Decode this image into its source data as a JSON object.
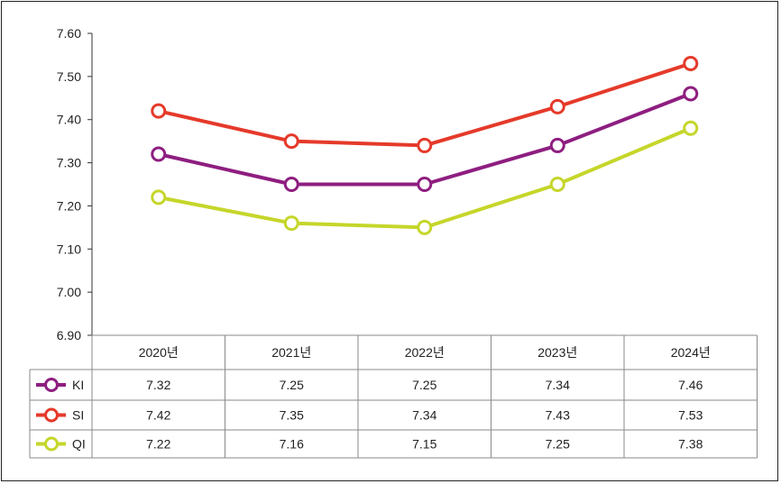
{
  "chart_data": {
    "type": "line",
    "categories": [
      "2020년",
      "2021년",
      "2022년",
      "2023년",
      "2024년"
    ],
    "ylim": [
      6.9,
      7.6
    ],
    "yticks": [
      "6.90",
      "7.00",
      "7.10",
      "7.20",
      "7.30",
      "7.40",
      "7.50",
      "7.60"
    ],
    "grid": false,
    "legend": "data-table",
    "series": [
      {
        "name": "KI",
        "color": "#8e1e80",
        "values": [
          7.32,
          7.25,
          7.25,
          7.34,
          7.46
        ],
        "labels": [
          "7.32",
          "7.25",
          "7.25",
          "7.34",
          "7.46"
        ]
      },
      {
        "name": "SI",
        "color": "#e53a2a",
        "values": [
          7.42,
          7.35,
          7.34,
          7.43,
          7.53
        ],
        "labels": [
          "7.42",
          "7.35",
          "7.34",
          "7.43",
          "7.53"
        ]
      },
      {
        "name": "QI",
        "color": "#c5d62a",
        "values": [
          7.22,
          7.16,
          7.15,
          7.25,
          7.38
        ],
        "labels": [
          "7.22",
          "7.16",
          "7.15",
          "7.25",
          "7.38"
        ]
      }
    ]
  }
}
